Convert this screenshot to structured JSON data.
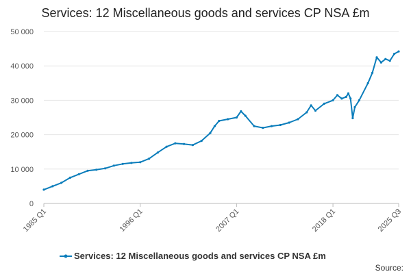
{
  "chart_data": {
    "type": "line",
    "title": "Services: 12 Miscellaneous goods and services CP NSA £m",
    "xlabel": "",
    "ylabel": "",
    "x_ticks": [
      "1985 Q1",
      "1996 Q1",
      "2007 Q1",
      "2018 Q1",
      "2025 Q3"
    ],
    "y_ticks": [
      "0",
      "10 000",
      "20 000",
      "30 000",
      "40 000",
      "50 000"
    ],
    "ylim": [
      0,
      50000
    ],
    "xlim": [
      "1985 Q1",
      "2025 Q3"
    ],
    "grid": "horizontal",
    "legend_position": "bottom",
    "series": [
      {
        "name": "Services: 12 Miscellaneous goods and services CP NSA £m",
        "color": "#0b7dbb",
        "x": [
          "1985 Q1",
          "1986 Q1",
          "1987 Q1",
          "1988 Q1",
          "1989 Q1",
          "1990 Q1",
          "1991 Q1",
          "1992 Q1",
          "1993 Q1",
          "1994 Q1",
          "1995 Q1",
          "1996 Q1",
          "1997 Q1",
          "1998 Q1",
          "1999 Q1",
          "2000 Q1",
          "2001 Q1",
          "2002 Q1",
          "2003 Q1",
          "2004 Q1",
          "2004 Q3",
          "2005 Q1",
          "2006 Q1",
          "2007 Q1",
          "2007 Q3",
          "2008 Q1",
          "2009 Q1",
          "2010 Q1",
          "2011 Q1",
          "2012 Q1",
          "2013 Q1",
          "2014 Q1",
          "2015 Q1",
          "2015 Q3",
          "2016 Q1",
          "2017 Q1",
          "2018 Q1",
          "2018 Q3",
          "2019 Q1",
          "2019 Q3",
          "2019 Q4",
          "2020 Q1",
          "2020 Q2",
          "2020 Q3",
          "2021 Q1",
          "2022 Q1",
          "2022 Q3",
          "2023 Q1",
          "2023 Q3",
          "2024 Q1",
          "2024 Q3",
          "2025 Q1",
          "2025 Q3"
        ],
        "y": [
          4000,
          5000,
          6000,
          7500,
          8500,
          9500,
          9800,
          10200,
          11000,
          11500,
          11800,
          12000,
          13000,
          14800,
          16500,
          17500,
          17300,
          17000,
          18200,
          20500,
          22500,
          24000,
          24500,
          25000,
          26800,
          25500,
          22500,
          22000,
          22500,
          22800,
          23500,
          24500,
          26500,
          28500,
          27000,
          29000,
          30000,
          31500,
          30500,
          31000,
          32000,
          30500,
          24800,
          28000,
          30000,
          35000,
          38000,
          42500,
          41000,
          42000,
          41500,
          43500,
          44200
        ]
      }
    ]
  },
  "legend": {
    "label": "Services: 12 Miscellaneous goods and services CP NSA £m"
  },
  "source": {
    "label": "Source:"
  }
}
